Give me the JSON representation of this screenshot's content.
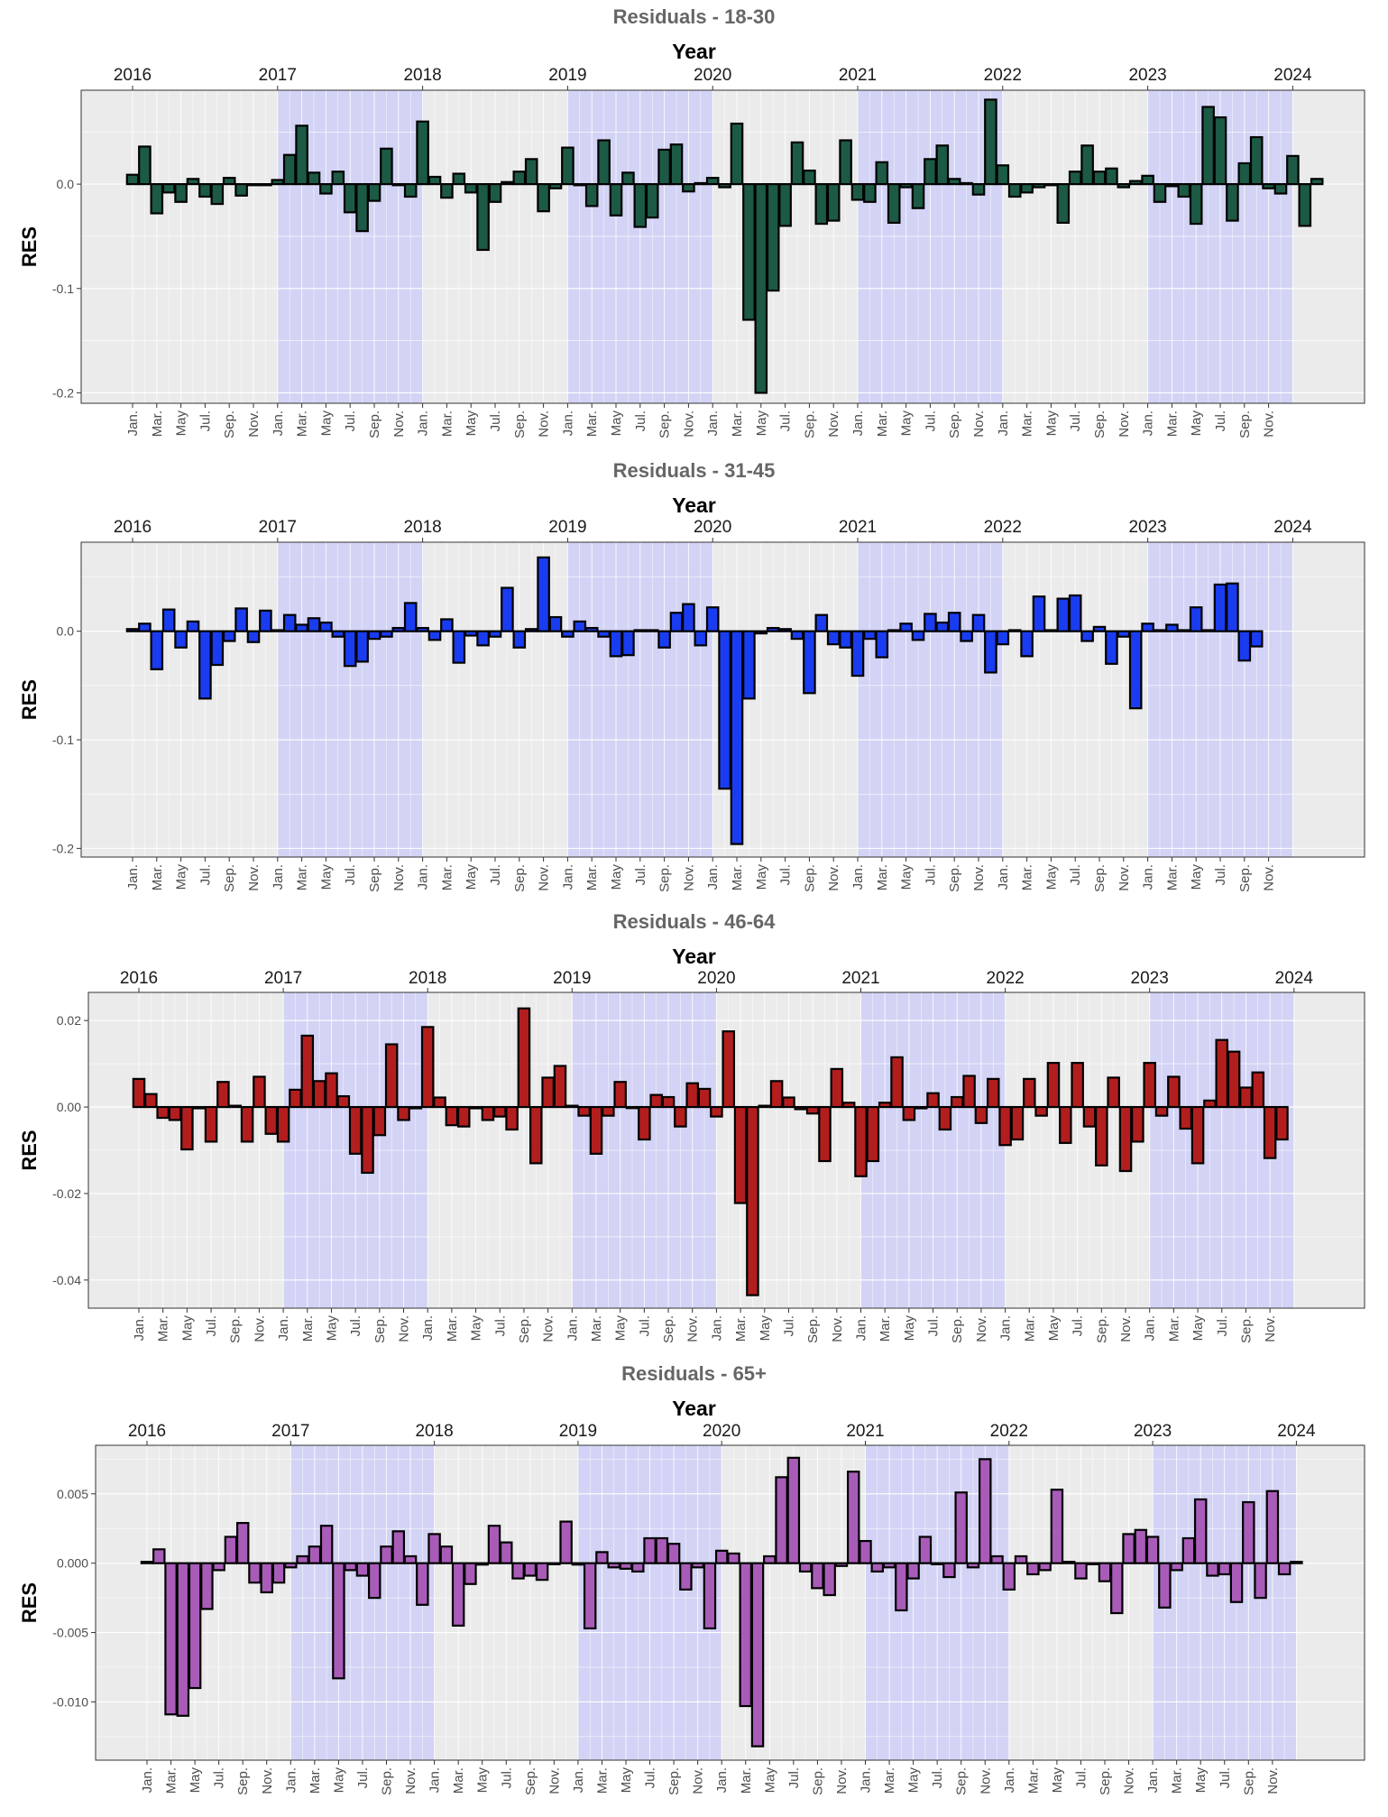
{
  "chart_data": [
    {
      "type": "bar",
      "title": "Residuals - 18-30",
      "top_axis_label": "Year",
      "ylabel": "RES",
      "year_ticks": [
        "2016",
        "2017",
        "2018",
        "2019",
        "2020",
        "2021",
        "2022",
        "2023",
        "2024"
      ],
      "month_ticks": [
        "Jan.",
        "Mar.",
        "May",
        "Jul.",
        "Sep.",
        "Nov."
      ],
      "shaded_years": [
        "2017",
        "2019",
        "2021",
        "2023"
      ],
      "ylim": [
        -0.21,
        0.09
      ],
      "yticks": [
        0.0,
        -0.1,
        -0.2
      ],
      "ytick_labels": [
        "0.0",
        "-0.1",
        "-0.2"
      ],
      "color": "#1c5a45",
      "grid": true,
      "values": [
        0.009,
        0.036,
        -0.028,
        -0.008,
        -0.017,
        0.005,
        -0.012,
        -0.019,
        0.006,
        -0.011,
        -0.001,
        -0.001,
        0.004,
        0.028,
        0.056,
        0.011,
        -0.009,
        0.012,
        -0.027,
        -0.045,
        -0.016,
        0.034,
        0.0,
        -0.012,
        0.06,
        0.007,
        -0.013,
        0.01,
        -0.008,
        -0.063,
        -0.017,
        0.002,
        0.012,
        0.024,
        -0.026,
        -0.004,
        0.035,
        -0.001,
        -0.021,
        0.042,
        -0.03,
        0.011,
        -0.041,
        -0.032,
        0.033,
        0.038,
        -0.007,
        0.001,
        0.006,
        -0.003,
        0.058,
        -0.13,
        -0.2,
        -0.102,
        -0.04,
        0.04,
        0.013,
        -0.038,
        -0.035,
        0.042,
        -0.015,
        -0.017,
        0.021,
        -0.037,
        -0.003,
        -0.023,
        0.024,
        0.037,
        0.005,
        0.001,
        -0.01,
        0.081,
        0.018,
        -0.012,
        -0.008,
        -0.003,
        -0.001,
        -0.037,
        0.012,
        0.037,
        0.012,
        0.015,
        -0.003,
        0.003,
        0.008,
        -0.017,
        -0.002,
        -0.012,
        -0.038,
        0.074,
        0.064,
        -0.035,
        0.02,
        0.045,
        -0.004,
        -0.009,
        0.027,
        -0.04,
        0.005
      ]
    },
    {
      "type": "bar",
      "title": "Residuals - 31-45",
      "top_axis_label": "Year",
      "ylabel": "RES",
      "year_ticks": [
        "2016",
        "2017",
        "2018",
        "2019",
        "2020",
        "2021",
        "2022",
        "2023",
        "2024"
      ],
      "month_ticks": [
        "Jan.",
        "Mar.",
        "May",
        "Jul.",
        "Sep.",
        "Nov."
      ],
      "shaded_years": [
        "2017",
        "2019",
        "2021",
        "2023"
      ],
      "ylim": [
        -0.208,
        0.082
      ],
      "yticks": [
        0.0,
        -0.1,
        -0.2
      ],
      "ytick_labels": [
        "0.0",
        "-0.1",
        "-0.2"
      ],
      "color": "#1a3cf0",
      "grid": true,
      "values": [
        0.002,
        0.007,
        -0.035,
        0.02,
        -0.015,
        0.009,
        -0.062,
        -0.031,
        -0.009,
        0.021,
        -0.01,
        0.019,
        0.001,
        0.015,
        0.006,
        0.012,
        0.008,
        -0.005,
        -0.032,
        -0.028,
        -0.007,
        -0.005,
        0.003,
        0.026,
        0.003,
        -0.008,
        0.011,
        -0.029,
        -0.004,
        -0.013,
        -0.005,
        0.04,
        -0.015,
        0.002,
        0.068,
        0.013,
        -0.005,
        0.009,
        0.003,
        -0.005,
        -0.023,
        -0.022,
        0.001,
        0.001,
        -0.015,
        0.017,
        0.025,
        -0.013,
        0.022,
        -0.145,
        -0.196,
        -0.062,
        -0.002,
        0.003,
        0.002,
        -0.007,
        -0.057,
        0.015,
        -0.012,
        -0.015,
        -0.041,
        -0.007,
        -0.024,
        0.001,
        0.007,
        -0.008,
        0.016,
        0.008,
        0.017,
        -0.009,
        0.015,
        -0.038,
        -0.012,
        0.001,
        -0.023,
        0.032,
        0.001,
        0.03,
        0.033,
        -0.009,
        0.004,
        -0.03,
        -0.005,
        -0.071,
        0.007,
        0.001,
        0.006,
        0.001,
        0.022,
        0.001,
        0.043,
        0.044,
        -0.027,
        -0.014
      ]
    },
    {
      "type": "bar",
      "title": "Residuals - 46-64",
      "top_axis_label": "Year",
      "ylabel": "RES",
      "year_ticks": [
        "2016",
        "2017",
        "2018",
        "2019",
        "2020",
        "2021",
        "2022",
        "2023",
        "2024"
      ],
      "month_ticks": [
        "Jan.",
        "Mar.",
        "May",
        "Jul.",
        "Sep.",
        "Nov."
      ],
      "shaded_years": [
        "2017",
        "2019",
        "2021",
        "2023"
      ],
      "ylim": [
        -0.0465,
        0.0265
      ],
      "yticks": [
        0.02,
        0.0,
        -0.02,
        -0.04
      ],
      "ytick_labels": [
        "0.02",
        "0.00",
        "-0.02",
        "-0.04"
      ],
      "color": "#b21e1e",
      "grid": true,
      "values": [
        0.0065,
        0.003,
        -0.0025,
        -0.003,
        -0.0098,
        -0.0003,
        -0.008,
        0.0058,
        0.0003,
        -0.008,
        0.007,
        -0.0062,
        -0.008,
        0.004,
        0.0165,
        0.006,
        0.0078,
        0.0025,
        -0.0108,
        -0.0152,
        -0.0065,
        0.0145,
        -0.003,
        -0.0003,
        0.0185,
        0.0022,
        -0.0042,
        -0.0045,
        -0.0003,
        -0.003,
        -0.0022,
        -0.0052,
        0.0228,
        -0.013,
        0.0068,
        0.0095,
        0.0003,
        -0.002,
        -0.0108,
        -0.002,
        0.0058,
        0.0,
        -0.0075,
        0.0028,
        0.0023,
        -0.0045,
        0.0055,
        0.0042,
        -0.0022,
        0.0175,
        -0.0222,
        -0.0435,
        0.0003,
        0.006,
        0.0022,
        -0.0005,
        -0.0015,
        -0.0125,
        0.0088,
        0.001,
        -0.016,
        -0.0125,
        0.001,
        0.0115,
        -0.003,
        -0.0003,
        0.0032,
        -0.0052,
        0.0023,
        0.0072,
        -0.0037,
        0.0065,
        -0.0088,
        -0.0075,
        0.0065,
        -0.002,
        0.0102,
        -0.0083,
        0.0102,
        -0.0045,
        -0.0135,
        0.0068,
        -0.0148,
        -0.008,
        0.0102,
        -0.002,
        0.007,
        -0.005,
        -0.013,
        0.0015,
        0.0155,
        0.0128,
        0.0045,
        0.008,
        -0.0118,
        -0.0075
      ]
    },
    {
      "type": "bar",
      "title": "Residuals - 65+",
      "top_axis_label": "Year",
      "ylabel": "RES",
      "year_ticks": [
        "2016",
        "2017",
        "2018",
        "2019",
        "2020",
        "2021",
        "2022",
        "2023",
        "2024"
      ],
      "month_ticks": [
        "Jan.",
        "Mar.",
        "May",
        "Jul.",
        "Sep.",
        "Nov."
      ],
      "shaded_years": [
        "2017",
        "2019",
        "2021",
        "2023"
      ],
      "ylim": [
        -0.0142,
        0.0085
      ],
      "yticks": [
        0.005,
        0.0,
        -0.005,
        -0.01
      ],
      "ytick_labels": [
        "0.005",
        "0.000",
        "-0.005",
        "-0.010"
      ],
      "color": "#a85cb8",
      "grid": true,
      "values": [
        0.0001,
        0.001,
        -0.0109,
        -0.011,
        -0.009,
        -0.0033,
        -0.0005,
        0.0019,
        0.0029,
        -0.0014,
        -0.0021,
        -0.0014,
        -0.0003,
        0.0005,
        0.0012,
        0.0027,
        -0.0083,
        -0.0005,
        -0.0009,
        -0.0025,
        0.0012,
        0.0023,
        0.0005,
        -0.003,
        0.0021,
        0.0012,
        -0.0045,
        -0.0015,
        -0.0001,
        0.0027,
        0.0015,
        -0.0011,
        -0.0009,
        -0.0012,
        0.0,
        0.003,
        -0.0001,
        -0.0047,
        0.0008,
        -0.0003,
        -0.0004,
        -0.0006,
        0.0018,
        0.0018,
        0.0014,
        -0.0019,
        -0.0003,
        -0.0047,
        0.0009,
        0.0007,
        -0.0103,
        -0.0132,
        0.0005,
        0.0062,
        0.0076,
        -0.0006,
        -0.0018,
        -0.0023,
        -0.0002,
        0.0066,
        0.0016,
        -0.0006,
        -0.0003,
        -0.0034,
        -0.0011,
        0.0019,
        0.0,
        -0.001,
        0.0051,
        -0.0003,
        0.0075,
        0.0005,
        -0.0019,
        0.0005,
        -0.0008,
        -0.0005,
        0.0053,
        0.0001,
        -0.0011,
        0.0,
        -0.0013,
        -0.0036,
        0.0021,
        0.0024,
        0.0019,
        -0.0032,
        -0.0005,
        0.0018,
        0.0046,
        -0.0009,
        -0.0008,
        -0.0028,
        0.0044,
        -0.0025,
        0.0052,
        -0.0008,
        0.0001
      ]
    }
  ],
  "theme": {
    "panel_bg": "#ebebeb",
    "shade": "#d3d3f5",
    "grid": "#ffffff",
    "bar_outline": "#000000"
  }
}
